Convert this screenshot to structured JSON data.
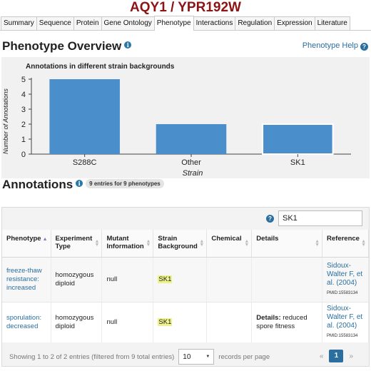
{
  "page_title": "AQY1 / YPR192W",
  "tabs": [
    {
      "label": "Summary"
    },
    {
      "label": "Sequence"
    },
    {
      "label": "Protein"
    },
    {
      "label": "Gene Ontology"
    },
    {
      "label": "Phenotype",
      "active": true
    },
    {
      "label": "Interactions"
    },
    {
      "label": "Regulation"
    },
    {
      "label": "Expression"
    },
    {
      "label": "Literature"
    }
  ],
  "overview": {
    "title": "Phenotype Overview",
    "help_label": "Phenotype Help"
  },
  "chart_data": {
    "type": "bar",
    "title": "Annotations in different strain backgrounds",
    "xlabel": "Strain",
    "ylabel": "Number of Annotations",
    "categories": [
      "S288C",
      "Other",
      "SK1"
    ],
    "values": [
      5,
      2,
      2
    ],
    "ylim": [
      0,
      5
    ],
    "yticks": [
      "0",
      "1",
      "2",
      "3",
      "4",
      "5"
    ],
    "bar_color": "#4a8fcb",
    "highlighted_category": "SK1",
    "grid": false
  },
  "annotations": {
    "title": "Annotations",
    "badge": "9 entries for 9 phenotypes",
    "search_value": "SK1",
    "columns": [
      "Phenotype",
      "Experiment Type",
      "Mutant Information",
      "Strain Background",
      "Chemical",
      "Details",
      "Reference"
    ],
    "rows": [
      {
        "phenotype": "freeze-thaw resistance: increased",
        "experiment": "homozygous diploid",
        "mutant": "null",
        "strain": "SK1",
        "chemical": "",
        "details_label": "",
        "details_text": "",
        "reference": "Sidoux-Walter F, et al. (2004)",
        "pmid": "PMID:15583134"
      },
      {
        "phenotype": "sporulation: decreased",
        "experiment": "homozygous diploid",
        "mutant": "null",
        "strain": "SK1",
        "chemical": "",
        "details_label": "Details:",
        "details_text": "reduced spore fitness",
        "reference": "Sidoux-Walter F, et al. (2004)",
        "pmid": "PMID:15583134"
      }
    ],
    "footer": {
      "info": "Showing 1 to 2 of 2 entries (filtered from 9 total entries)",
      "page_size": "10",
      "per_page_label": "records per page",
      "prev": "«",
      "current_page": "1",
      "next": "»"
    }
  },
  "colors": {
    "title_red": "#8b1414",
    "link_blue": "#2a6fa0",
    "highlight_yellow": "#eef28a"
  }
}
